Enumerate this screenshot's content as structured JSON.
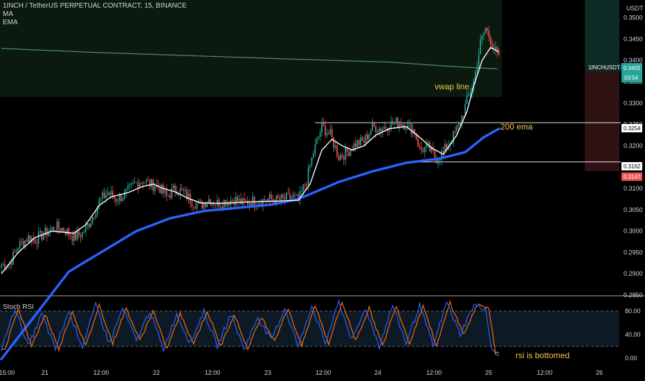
{
  "header": {
    "symbol_line": "1INCH / TetherUS PERPETUAL CONTRACT, 15, BINANCE",
    "indicator_1": "MA",
    "indicator_2": "EMA"
  },
  "rsi_panel_label": "Stoch RSI",
  "currency": "USDT",
  "colors": {
    "background": "#000000",
    "candle_up": "#26a69a",
    "candle_down": "#ef5350",
    "ma_line": "#ffffff",
    "ema_line": "#2962ff",
    "vwap_line": "#4f8f6a",
    "annotation": "#f5c451",
    "stoch_k": "#2962ff",
    "stoch_d": "#ff6d00"
  },
  "tags": {
    "symbol_tag": "1INCHUSDT.P",
    "price_tag": "0.3402",
    "countdown": "03:54",
    "level_1": "0.3254",
    "level_2": "0.3162",
    "level_3": "0.3147"
  },
  "annotations": {
    "vwap": "vwap line",
    "ema": "200 ema",
    "rsi": "rsi is bottomed"
  },
  "chart_data": {
    "type": "candlestick",
    "y_axis": {
      "ticks": [
        "0.3500",
        "0.3450",
        "0.3400",
        "0.3350",
        "0.3300",
        "0.3250",
        "0.3200",
        "0.3150",
        "0.3100",
        "0.3050",
        "0.3000",
        "0.2950",
        "0.2900",
        "0.2850"
      ],
      "ylim": [
        0.285,
        0.3535
      ]
    },
    "x_axis": {
      "ticks": [
        "15:00",
        "21",
        "12:00",
        "22",
        "12:00",
        "23",
        "12:00",
        "24",
        "12:00",
        "25",
        "12:00",
        "26"
      ]
    },
    "horizontal_levels": [
      0.3254,
      0.3162
    ],
    "price_anchors": [
      [
        0,
        0.292
      ],
      [
        5,
        0.2925
      ],
      [
        10,
        0.2965
      ],
      [
        16,
        0.2985
      ],
      [
        20,
        0.298
      ],
      [
        26,
        0.2995
      ],
      [
        32,
        0.301
      ],
      [
        37,
        0.3005
      ],
      [
        43,
        0.2985
      ],
      [
        48,
        0.2995
      ],
      [
        53,
        0.3025
      ],
      [
        58,
        0.307
      ],
      [
        63,
        0.309
      ],
      [
        68,
        0.3075
      ],
      [
        73,
        0.3085
      ],
      [
        79,
        0.311
      ],
      [
        84,
        0.312
      ],
      [
        88,
        0.311
      ],
      [
        93,
        0.3105
      ],
      [
        98,
        0.308
      ],
      [
        103,
        0.31
      ],
      [
        108,
        0.309
      ],
      [
        113,
        0.307
      ],
      [
        118,
        0.306
      ],
      [
        123,
        0.3075
      ],
      [
        128,
        0.3065
      ],
      [
        133,
        0.307
      ],
      [
        138,
        0.3075
      ],
      [
        143,
        0.3065
      ],
      [
        148,
        0.307
      ],
      [
        153,
        0.307
      ],
      [
        158,
        0.3075
      ],
      [
        163,
        0.3072
      ],
      [
        168,
        0.3075
      ],
      [
        173,
        0.308
      ],
      [
        176,
        0.307
      ],
      [
        181,
        0.312
      ],
      [
        185,
        0.3185
      ],
      [
        190,
        0.3245
      ],
      [
        195,
        0.3225
      ],
      [
        200,
        0.3175
      ],
      [
        205,
        0.3185
      ],
      [
        210,
        0.3205
      ],
      [
        215,
        0.321
      ],
      [
        220,
        0.3245
      ],
      [
        225,
        0.324
      ],
      [
        230,
        0.325
      ],
      [
        235,
        0.3255
      ],
      [
        240,
        0.325
      ],
      [
        245,
        0.3235
      ],
      [
        248,
        0.319
      ],
      [
        253,
        0.3195
      ],
      [
        258,
        0.317
      ],
      [
        262,
        0.3185
      ],
      [
        267,
        0.3215
      ],
      [
        272,
        0.3255
      ],
      [
        276,
        0.3305
      ],
      [
        280,
        0.335
      ],
      [
        284,
        0.344
      ],
      [
        287,
        0.3475
      ],
      [
        290,
        0.345
      ],
      [
        293,
        0.342
      ],
      [
        295,
        0.3402
      ]
    ],
    "ema_200_anchors": [
      [
        0,
        0.27
      ],
      [
        40,
        0.2905
      ],
      [
        80,
        0.3
      ],
      [
        100,
        0.303
      ],
      [
        120,
        0.3047
      ],
      [
        160,
        0.3062
      ],
      [
        176,
        0.3075
      ],
      [
        200,
        0.3115
      ],
      [
        220,
        0.314
      ],
      [
        240,
        0.316
      ],
      [
        260,
        0.317
      ],
      [
        275,
        0.3185
      ],
      [
        286,
        0.322
      ],
      [
        295,
        0.324
      ]
    ],
    "ma_anchors": [
      [
        0,
        0.29
      ],
      [
        10,
        0.295
      ],
      [
        20,
        0.2985
      ],
      [
        30,
        0.3
      ],
      [
        43,
        0.2995
      ],
      [
        50,
        0.3015
      ],
      [
        58,
        0.306
      ],
      [
        65,
        0.308
      ],
      [
        75,
        0.309
      ],
      [
        84,
        0.3105
      ],
      [
        90,
        0.311
      ],
      [
        96,
        0.31
      ],
      [
        103,
        0.3092
      ],
      [
        110,
        0.3078
      ],
      [
        118,
        0.3066
      ],
      [
        130,
        0.3065
      ],
      [
        145,
        0.3068
      ],
      [
        160,
        0.307
      ],
      [
        176,
        0.3072
      ],
      [
        183,
        0.311
      ],
      [
        190,
        0.319
      ],
      [
        196,
        0.3215
      ],
      [
        202,
        0.32
      ],
      [
        208,
        0.319
      ],
      [
        215,
        0.32
      ],
      [
        222,
        0.3225
      ],
      [
        230,
        0.324
      ],
      [
        240,
        0.3245
      ],
      [
        248,
        0.322
      ],
      [
        255,
        0.3195
      ],
      [
        262,
        0.318
      ],
      [
        270,
        0.3225
      ],
      [
        276,
        0.328
      ],
      [
        280,
        0.334
      ],
      [
        285,
        0.34
      ],
      [
        290,
        0.343
      ],
      [
        295,
        0.342
      ]
    ],
    "vwap_anchors": [
      [
        0,
        0.3428
      ],
      [
        60,
        0.3418
      ],
      [
        120,
        0.341
      ],
      [
        180,
        0.3402
      ],
      [
        230,
        0.3396
      ],
      [
        270,
        0.3385
      ],
      [
        295,
        0.338
      ]
    ],
    "stoch_rsi": {
      "ylim": [
        0,
        100
      ],
      "ticks": [
        "80.00",
        "40.00",
        "0.00"
      ],
      "bands": [
        80,
        20
      ],
      "k_anchors": [
        [
          0,
          15
        ],
        [
          8,
          85
        ],
        [
          16,
          20
        ],
        [
          24,
          75
        ],
        [
          32,
          15
        ],
        [
          40,
          80
        ],
        [
          48,
          20
        ],
        [
          56,
          90
        ],
        [
          64,
          25
        ],
        [
          72,
          85
        ],
        [
          80,
          30
        ],
        [
          88,
          80
        ],
        [
          96,
          15
        ],
        [
          104,
          75
        ],
        [
          112,
          25
        ],
        [
          120,
          80
        ],
        [
          128,
          20
        ],
        [
          136,
          75
        ],
        [
          144,
          15
        ],
        [
          152,
          70
        ],
        [
          160,
          30
        ],
        [
          168,
          85
        ],
        [
          176,
          20
        ],
        [
          184,
          90
        ],
        [
          192,
          25
        ],
        [
          200,
          95
        ],
        [
          208,
          30
        ],
        [
          216,
          85
        ],
        [
          224,
          20
        ],
        [
          232,
          90
        ],
        [
          240,
          25
        ],
        [
          248,
          90
        ],
        [
          256,
          20
        ],
        [
          264,
          95
        ],
        [
          272,
          40
        ],
        [
          280,
          90
        ],
        [
          287,
          85
        ],
        [
          291,
          10
        ],
        [
          295,
          5
        ]
      ]
    }
  }
}
